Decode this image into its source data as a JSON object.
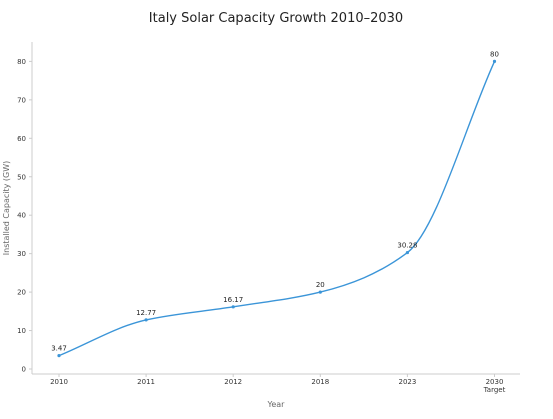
{
  "chart_data": {
    "type": "line",
    "title": "Italy Solar Capacity Growth 2010–2030",
    "xlabel": "Year",
    "ylabel": "Installed Capacity (GW)",
    "categories": [
      "2010",
      "2011",
      "2012",
      "2018",
      "2023",
      "2030"
    ],
    "category_sublabels": [
      "",
      "",
      "",
      "",
      "",
      "Target"
    ],
    "series": [
      {
        "values": [
          3.47,
          12.77,
          16.17,
          20,
          30.28,
          80
        ],
        "labels": [
          "3.47",
          "12.77",
          "16.17",
          "20",
          "30.28",
          "80"
        ],
        "color": "#3b95d8"
      }
    ],
    "ylim": [
      0,
      85
    ],
    "yticks": [
      0,
      10,
      20,
      30,
      40,
      50,
      60,
      70,
      80
    ],
    "grid": false,
    "smooth": true
  }
}
